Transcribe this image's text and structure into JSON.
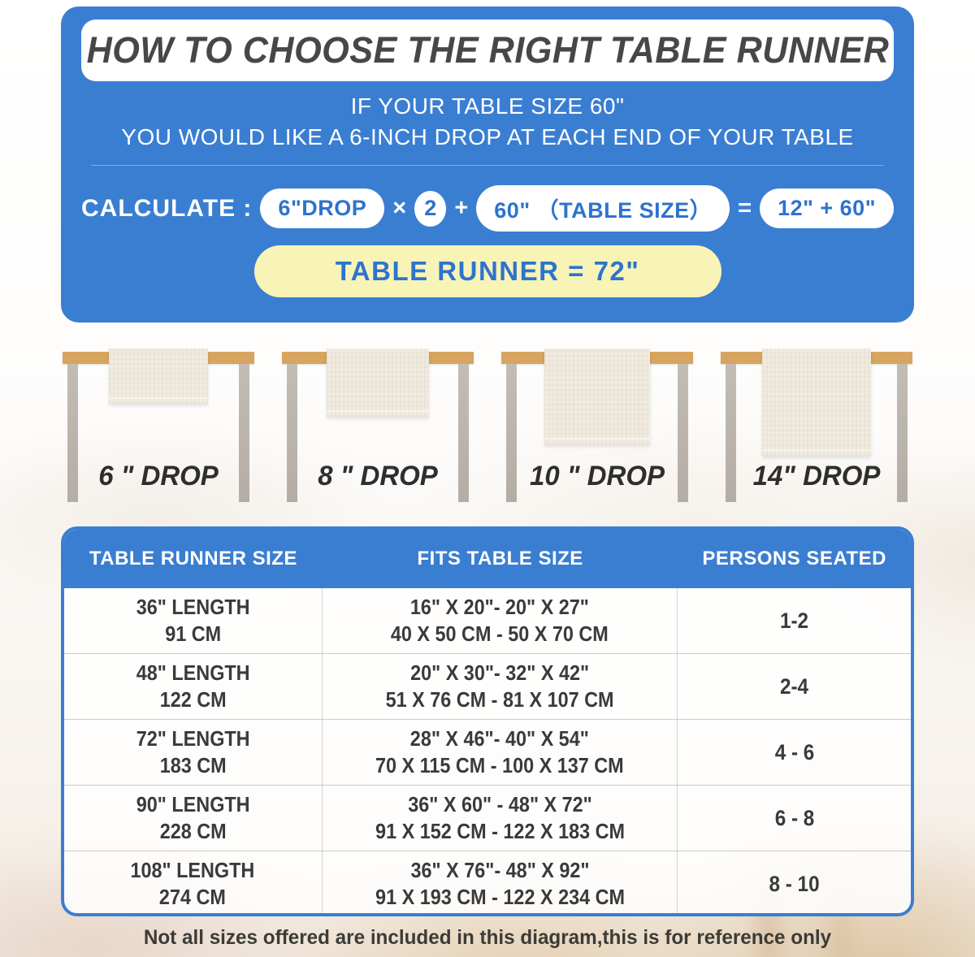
{
  "colors": {
    "panel_blue": "#3a7ed2",
    "pill_text_blue": "#2e73cd",
    "result_yellow": "#f8f4b8",
    "tabletop_tan": "#d7a55f",
    "leg_gray": "#b9b2ab",
    "runner_cream": "#f1ecdf",
    "text_dark": "#3a3a3a"
  },
  "header": {
    "title": "HOW TO CHOOSE THE RIGHT TABLE RUNNER",
    "intro_line1": "IF YOUR TABLE SIZE 60\"",
    "intro_line2": "YOU WOULD LIKE A 6-INCH DROP AT EACH END OF YOUR TABLE"
  },
  "calc": {
    "label": "CALCULATE :",
    "drop_pill": "6\"DROP",
    "times": "×",
    "multiplier": "2",
    "plus": "+",
    "size_pill": "60\" （TABLE SIZE）",
    "equals": "=",
    "sum_pill": "12\" + 60\"",
    "result": "TABLE RUNNER = 72\""
  },
  "drop_examples": [
    {
      "label": "6 \" DROP"
    },
    {
      "label": "8 \" DROP"
    },
    {
      "label": "10 \" DROP"
    },
    {
      "label": "14\" DROP"
    }
  ],
  "size_table": {
    "headers": [
      "TABLE RUNNER SIZE",
      "FITS TABLE SIZE",
      "PERSONS SEATED"
    ],
    "rows": [
      {
        "runner_in": "36\" LENGTH",
        "runner_cm": "91 CM",
        "fits_in": "16\" X 20\"- 20\" X 27\"",
        "fits_cm": "40 X 50 CM - 50 X 70 CM",
        "persons": "1-2"
      },
      {
        "runner_in": "48\" LENGTH",
        "runner_cm": "122 CM",
        "fits_in": "20\" X 30\"- 32\" X 42\"",
        "fits_cm": "51 X 76 CM - 81 X 107 CM",
        "persons": "2-4"
      },
      {
        "runner_in": "72\" LENGTH",
        "runner_cm": "183 CM",
        "fits_in": "28\" X 46\"- 40\" X 54\"",
        "fits_cm": "70 X 115 CM - 100 X 137 CM",
        "persons": "4 - 6"
      },
      {
        "runner_in": "90\" LENGTH",
        "runner_cm": "228 CM",
        "fits_in": "36\" X 60\" - 48\" X 72\"",
        "fits_cm": "91 X 152 CM - 122 X 183 CM",
        "persons": "6 - 8"
      },
      {
        "runner_in": "108\" LENGTH",
        "runner_cm": "274 CM",
        "fits_in": "36\" X 76\"- 48\" X 92\"",
        "fits_cm": "91 X 193 CM - 122 X 234 CM",
        "persons": "8 - 10"
      }
    ]
  },
  "footer": {
    "note": "Not all sizes offered are included in this diagram,this is for reference only"
  }
}
